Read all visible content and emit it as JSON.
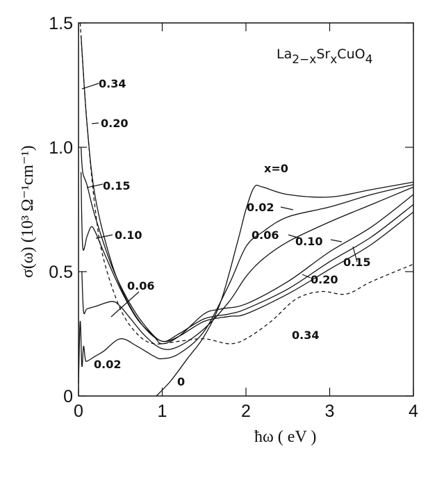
{
  "chart_data": {
    "type": "line",
    "title": "",
    "annotation": {
      "base": "La",
      "sub1": "2−x",
      "mid": "Sr",
      "sub2": "x",
      "end": "CuO",
      "sub3": "4"
    },
    "xlabel": "ħω ( eV )",
    "ylabel": "σ(ω) (10³ Ω⁻¹cm⁻¹)",
    "xlim": [
      0,
      4
    ],
    "ylim": [
      0,
      1.5
    ],
    "xticks": [
      "0",
      "1",
      "2",
      "3",
      "4"
    ],
    "yticks": [
      "0",
      "0.5",
      "1.0",
      "1.5"
    ],
    "grid": false,
    "series": [
      {
        "name": "x=0",
        "label2": "0",
        "style": "solid",
        "x": [
          0.93,
          1.1,
          1.3,
          1.5,
          1.7,
          1.9,
          2.0,
          2.1,
          2.2,
          2.5,
          3.0,
          3.5,
          4.0
        ],
        "y": [
          0.0,
          0.06,
          0.15,
          0.24,
          0.38,
          0.62,
          0.75,
          0.84,
          0.84,
          0.81,
          0.8,
          0.83,
          0.86
        ]
      },
      {
        "name": "0.02",
        "style": "solid",
        "x": [
          0.0,
          0.02,
          0.04,
          0.06,
          0.08,
          0.1,
          0.2,
          0.3,
          0.5,
          0.7,
          0.9,
          1.0,
          1.2,
          1.5,
          1.8,
          2.0,
          2.2,
          2.5,
          3.0,
          3.5,
          4.0
        ],
        "y": [
          0.05,
          0.3,
          0.12,
          0.2,
          0.15,
          0.14,
          0.16,
          0.18,
          0.23,
          0.2,
          0.16,
          0.15,
          0.17,
          0.26,
          0.45,
          0.6,
          0.66,
          0.72,
          0.76,
          0.81,
          0.85
        ]
      },
      {
        "name": "0.06",
        "style": "solid",
        "x": [
          0.04,
          0.06,
          0.1,
          0.2,
          0.4,
          0.5,
          0.6,
          0.8,
          1.0,
          1.2,
          1.5,
          1.8,
          2.0,
          2.2,
          2.5,
          3.0,
          3.5,
          4.0
        ],
        "y": [
          0.5,
          0.34,
          0.35,
          0.36,
          0.38,
          0.36,
          0.32,
          0.24,
          0.19,
          0.2,
          0.27,
          0.38,
          0.48,
          0.55,
          0.62,
          0.7,
          0.77,
          0.84
        ]
      },
      {
        "name": "0.10",
        "style": "solid",
        "x": [
          0.03,
          0.05,
          0.1,
          0.15,
          0.2,
          0.3,
          0.5,
          0.7,
          0.9,
          1.0,
          1.2,
          1.5,
          1.7,
          2.0,
          2.5,
          3.0,
          3.5,
          4.0
        ],
        "y": [
          0.9,
          0.6,
          0.64,
          0.68,
          0.66,
          0.58,
          0.43,
          0.31,
          0.24,
          0.21,
          0.24,
          0.33,
          0.35,
          0.37,
          0.46,
          0.58,
          0.68,
          0.81
        ]
      },
      {
        "name": "0.15",
        "style": "solid",
        "x": [
          0.03,
          0.05,
          0.1,
          0.2,
          0.4,
          0.6,
          0.8,
          1.0,
          1.2,
          1.5,
          1.8,
          2.0,
          2.5,
          3.0,
          3.5,
          4.0
        ],
        "y": [
          1.0,
          0.9,
          0.85,
          0.72,
          0.52,
          0.38,
          0.28,
          0.22,
          0.25,
          0.31,
          0.33,
          0.35,
          0.43,
          0.54,
          0.64,
          0.77
        ]
      },
      {
        "name": "0.20",
        "style": "solid",
        "x": [
          0.03,
          0.1,
          0.2,
          0.4,
          0.6,
          0.8,
          1.0,
          1.2,
          1.5,
          1.8,
          2.0,
          2.5,
          3.0,
          3.5,
          4.0
        ],
        "y": [
          1.45,
          1.1,
          0.8,
          0.53,
          0.37,
          0.27,
          0.22,
          0.24,
          0.3,
          0.32,
          0.33,
          0.41,
          0.51,
          0.61,
          0.74
        ]
      },
      {
        "name": "0.34",
        "style": "dashed",
        "x": [
          0.02,
          0.1,
          0.2,
          0.3,
          0.5,
          0.7,
          0.9,
          1.2,
          1.5,
          1.8,
          2.0,
          2.3,
          2.6,
          2.9,
          3.2,
          3.5,
          4.0
        ],
        "y": [
          1.5,
          1.1,
          0.75,
          0.55,
          0.35,
          0.25,
          0.21,
          0.22,
          0.23,
          0.21,
          0.23,
          0.3,
          0.39,
          0.42,
          0.41,
          0.46,
          0.53
        ]
      }
    ]
  }
}
